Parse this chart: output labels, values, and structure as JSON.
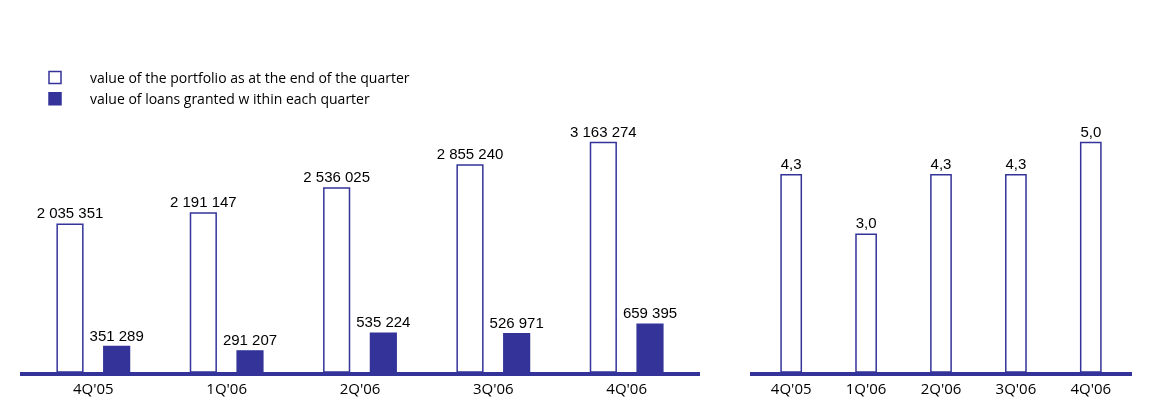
{
  "chart_data": [
    {
      "type": "bar",
      "categories": [
        "4Q'05",
        "1Q'06",
        "2Q'06",
        "3Q'06",
        "4Q'06"
      ],
      "legend": "top left",
      "grid": false,
      "series": [
        {
          "name": "value of the portfolio as at the end of the quarter",
          "color": "#ffffff",
          "values": [
            2035351,
            2191147,
            2536025,
            2855240,
            3163274
          ],
          "value_labels": [
            "2 035 351",
            "2 191 147",
            "2 536 025",
            "2 855 240",
            "3 163 274"
          ]
        },
        {
          "name": "value of loans granted w ithin each quarter",
          "color": "#333399",
          "values": [
            351289,
            291207,
            535224,
            526971,
            659395
          ],
          "value_labels": [
            "351 289",
            "291 207",
            "535 224",
            "526 971",
            "659 395"
          ]
        }
      ]
    },
    {
      "type": "bar",
      "categories": [
        "4Q'05",
        "1Q'06",
        "2Q'06",
        "3Q'06",
        "4Q'06"
      ],
      "grid": false,
      "series": [
        {
          "color": "#ffffff",
          "values": [
            4.3,
            3.0,
            4.3,
            4.3,
            5.0
          ],
          "value_labels": [
            "4,3",
            "3,0",
            "4,3",
            "4,3",
            "5,0"
          ]
        }
      ]
    }
  ]
}
